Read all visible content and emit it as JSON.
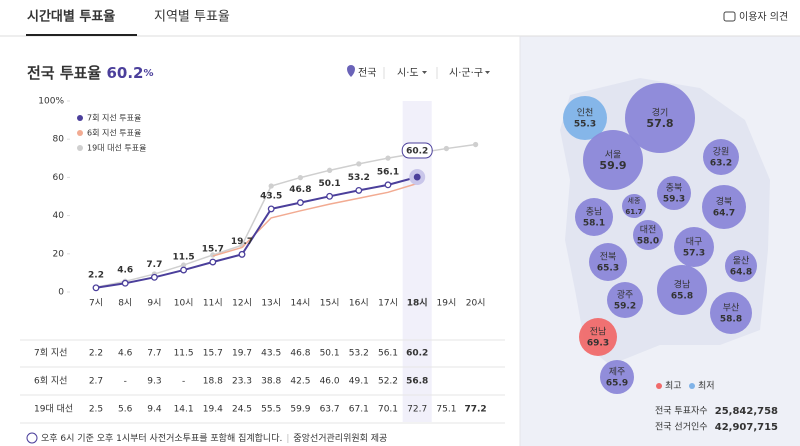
{
  "tabs": [
    "시간대별 투표율",
    "지역별 투표율"
  ],
  "feedback": "이용자 의견",
  "header": {
    "title": "전국 투표율",
    "rate": 60.2,
    "unit": "%"
  },
  "selectors": [
    "전국",
    "시·도",
    "시·군·구"
  ],
  "chart_data": {
    "type": "line",
    "categories": [
      "7시",
      "8시",
      "9시",
      "10시",
      "11시",
      "12시",
      "13시",
      "14시",
      "15시",
      "16시",
      "17시",
      "18시",
      "19시",
      "20시"
    ],
    "series": [
      {
        "name": "7회 지선 투표율",
        "color": "#4b3f9b",
        "values": [
          2.2,
          4.6,
          7.7,
          11.5,
          15.7,
          19.7,
          43.5,
          46.8,
          50.1,
          53.2,
          56.1,
          60.2,
          null,
          null
        ]
      },
      {
        "name": "6회 지선 투표율",
        "color": "#f2ab92",
        "values": [
          2.7,
          null,
          9.3,
          null,
          18.8,
          23.3,
          38.8,
          42.5,
          46.0,
          49.1,
          52.2,
          56.8,
          null,
          null
        ]
      },
      {
        "name": "19대 대선 투표율",
        "color": "#cfcfcf",
        "values": [
          2.5,
          5.6,
          9.4,
          14.1,
          19.4,
          24.5,
          55.5,
          59.9,
          63.7,
          67.1,
          70.1,
          72.7,
          75.1,
          77.2
        ]
      }
    ],
    "ylim": [
      0,
      100
    ],
    "yticks": [
      0,
      20,
      40,
      60,
      80,
      {
        "value": 100,
        "label": "100%"
      }
    ],
    "grid": false,
    "legend": "upper-left"
  },
  "table": {
    "rows": [
      {
        "label": "7회 지선",
        "cells": [
          "2.2",
          "4.6",
          "7.7",
          "11.5",
          "15.7",
          "19.7",
          "43.5",
          "46.8",
          "50.1",
          "53.2",
          "56.1",
          "60.2"
        ]
      },
      {
        "label": "6회 지선",
        "cells": [
          "2.7",
          "-",
          "9.3",
          "-",
          "18.8",
          "23.3",
          "38.8",
          "42.5",
          "46.0",
          "49.1",
          "52.2",
          "56.8"
        ]
      },
      {
        "label": "19대 대선",
        "cells": [
          "2.5",
          "5.6",
          "9.4",
          "14.1",
          "19.4",
          "24.5",
          "55.5",
          "59.9",
          "63.7",
          "67.1",
          "70.1",
          "72.7",
          "75.1",
          "77.2"
        ]
      }
    ]
  },
  "footer": {
    "note": "오후 6시 기준 오후 1시부터 사전거소투표를 포함해 집계합니다.",
    "source": "중앙선거관리위원회 제공"
  },
  "map": {
    "regions": [
      {
        "name": "인천",
        "rate": "55.3",
        "status": "min"
      },
      {
        "name": "경기",
        "rate": "57.8"
      },
      {
        "name": "서울",
        "rate": "59.9"
      },
      {
        "name": "강원",
        "rate": "63.2"
      },
      {
        "name": "충북",
        "rate": "59.3"
      },
      {
        "name": "세종",
        "rate": "61.7"
      },
      {
        "name": "충남",
        "rate": "58.1"
      },
      {
        "name": "경북",
        "rate": "64.7"
      },
      {
        "name": "대전",
        "rate": "58.0"
      },
      {
        "name": "대구",
        "rate": "57.3"
      },
      {
        "name": "전북",
        "rate": "65.3"
      },
      {
        "name": "울산",
        "rate": "64.8"
      },
      {
        "name": "경남",
        "rate": "65.8"
      },
      {
        "name": "광주",
        "rate": "59.2"
      },
      {
        "name": "부산",
        "rate": "58.8"
      },
      {
        "name": "전남",
        "rate": "69.3",
        "status": "max"
      },
      {
        "name": "제주",
        "rate": "65.9"
      }
    ],
    "legend": {
      "max": "최고",
      "min": "최저"
    },
    "stats": [
      {
        "label": "전국 투표자수",
        "value": "25,842,758"
      },
      {
        "label": "전국 선거인수",
        "value": "42,907,715"
      }
    ]
  }
}
